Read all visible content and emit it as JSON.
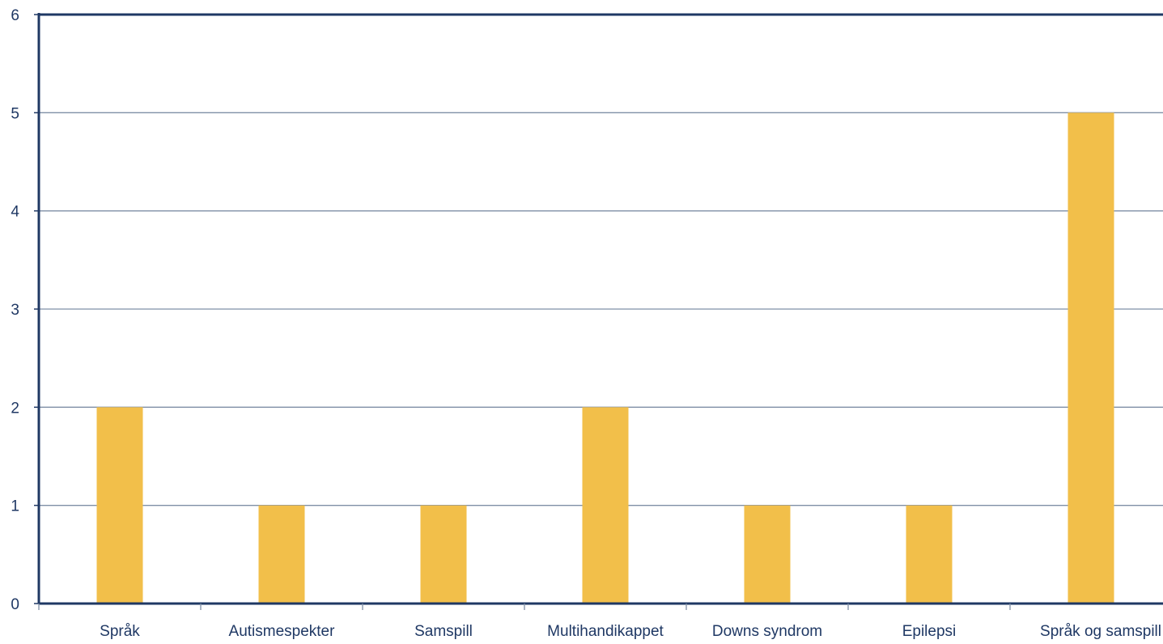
{
  "chart_data": {
    "type": "bar",
    "categories": [
      "Språk",
      "Autismespekter",
      "Samspill",
      "Multihandikappet",
      "Downs syndrom",
      "Epilepsi",
      "Språk og samspill"
    ],
    "values": [
      2,
      1,
      1,
      2,
      1,
      1,
      5
    ],
    "ylim": [
      0,
      6
    ],
    "yticks": [
      "0",
      "1",
      "2",
      "3",
      "4",
      "5",
      "6"
    ],
    "grid": true,
    "legend": "none",
    "title": "",
    "xlabel": "",
    "ylabel": ""
  },
  "colors": {
    "bar": "#f2bf4a",
    "axis": "#1f3864",
    "grid": "#7f8fa6",
    "text": "#1f3864"
  }
}
